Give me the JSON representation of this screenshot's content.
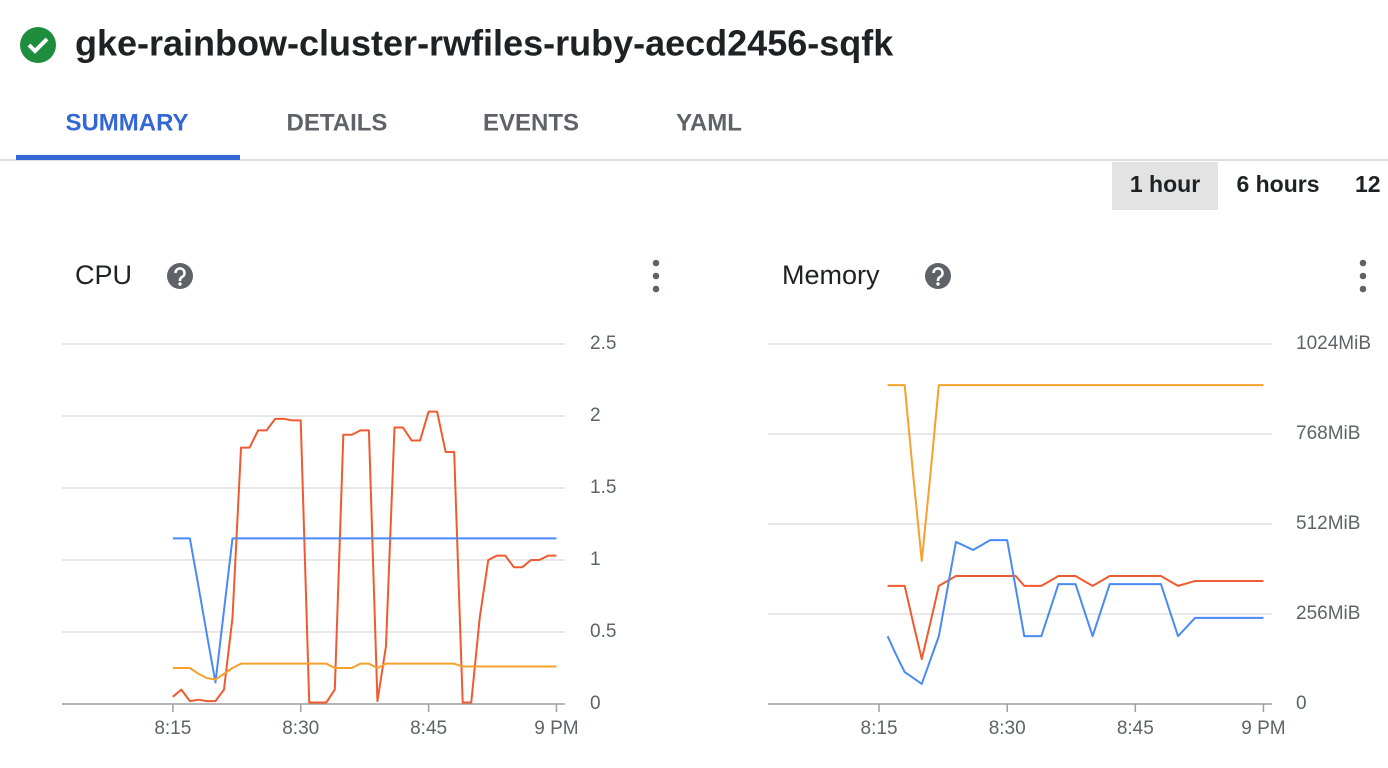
{
  "header": {
    "title": "gke-rainbow-cluster-rwfiles-ruby-aecd2456-sqfk"
  },
  "tabs": [
    "SUMMARY",
    "DETAILS",
    "EVENTS",
    "YAML"
  ],
  "time_ranges": [
    "1 hour",
    "6 hours",
    "12"
  ],
  "chart_data": [
    {
      "type": "line",
      "title": "CPU",
      "x": [
        "8:15",
        "8:16",
        "8:17",
        "8:18",
        "8:19",
        "8:20",
        "8:21",
        "8:22",
        "8:23",
        "8:24",
        "8:25",
        "8:26",
        "8:27",
        "8:28",
        "8:29",
        "8:30",
        "8:31",
        "8:32",
        "8:33",
        "8:34",
        "8:35",
        "8:36",
        "8:37",
        "8:38",
        "8:39",
        "8:40",
        "8:41",
        "8:42",
        "8:43",
        "8:44",
        "8:45",
        "8:46",
        "8:47",
        "8:48",
        "8:49",
        "8:50",
        "8:51",
        "8:52",
        "8:53",
        "8:54",
        "8:55",
        "8:56",
        "8:57",
        "8:58",
        "8:59",
        "9:00"
      ],
      "xlim": [
        "8:02",
        "9:01"
      ],
      "xticks": [
        "8:15",
        "8:30",
        "8:45",
        {
          "value": "9:00",
          "label": "9 PM"
        }
      ],
      "ylim": [
        0,
        2.5
      ],
      "yticks": [
        0,
        0.5,
        1.0,
        1.5,
        2.0,
        2.5
      ],
      "grid": true,
      "series": [
        {
          "color": "#ef5b30",
          "values": [
            0.05,
            0.1,
            0.02,
            0.03,
            0.02,
            0.02,
            0.1,
            0.6,
            1.78,
            1.78,
            1.9,
            1.9,
            1.98,
            1.98,
            1.97,
            1.97,
            0.01,
            0.01,
            0.01,
            0.1,
            1.87,
            1.87,
            1.9,
            1.9,
            0.02,
            0.4,
            1.92,
            1.92,
            1.83,
            1.83,
            2.03,
            2.03,
            1.75,
            1.75,
            0.01,
            0.01,
            0.6,
            1,
            1.03,
            1.03,
            0.95,
            0.95,
            1,
            1,
            1.03,
            1.03
          ]
        },
        {
          "color": "#4a8af4",
          "values": [
            1.15,
            1.15,
            1.15,
            0.82,
            0.48,
            0.15,
            0.65,
            1.15,
            1.15,
            1.15,
            1.15,
            1.15,
            1.15,
            1.15,
            1.15,
            1.15,
            1.15,
            1.15,
            1.15,
            1.15,
            1.15,
            1.15,
            1.15,
            1.15,
            1.15,
            1.15,
            1.15,
            1.15,
            1.15,
            1.15,
            1.15,
            1.15,
            1.15,
            1.15,
            1.15,
            1.15,
            1.15,
            1.15,
            1.15,
            1.15,
            1.15,
            1.15,
            1.15,
            1.15,
            1.15,
            1.15
          ]
        },
        {
          "color": "#f6a02e",
          "values": [
            0.25,
            0.25,
            0.25,
            0.21,
            0.18,
            0.17,
            0.21,
            0.25,
            0.28,
            0.28,
            0.28,
            0.28,
            0.28,
            0.28,
            0.28,
            0.28,
            0.28,
            0.28,
            0.28,
            0.25,
            0.25,
            0.25,
            0.28,
            0.28,
            0.25,
            0.28,
            0.28,
            0.28,
            0.28,
            0.28,
            0.28,
            0.28,
            0.28,
            0.28,
            0.26,
            0.26,
            0.26,
            0.26,
            0.26,
            0.26,
            0.26,
            0.26,
            0.26,
            0.26,
            0.26,
            0.26
          ]
        }
      ]
    },
    {
      "type": "line",
      "title": "Memory",
      "x": [
        "8:15",
        "8:16",
        "8:17",
        "8:18",
        "8:19",
        "8:20",
        "8:21",
        "8:22",
        "8:23",
        "8:24",
        "8:25",
        "8:26",
        "8:27",
        "8:28",
        "8:29",
        "8:30",
        "8:31",
        "8:32",
        "8:33",
        "8:34",
        "8:35",
        "8:36",
        "8:37",
        "8:38",
        "8:39",
        "8:40",
        "8:41",
        "8:42",
        "8:43",
        "8:44",
        "8:45",
        "8:46",
        "8:47",
        "8:48",
        "8:49",
        "8:50",
        "8:51",
        "8:52",
        "8:53",
        "8:54",
        "8:55",
        "8:56",
        "8:57",
        "8:58",
        "8:59",
        "9:00"
      ],
      "xlim": [
        "8:02",
        "9:01"
      ],
      "xticks": [
        "8:15",
        "8:30",
        "8:45",
        {
          "value": "9:00",
          "label": "9 PM"
        }
      ],
      "ylim": [
        0,
        1024
      ],
      "yticks": [
        0,
        {
          "value": 256,
          "label": "256MiB"
        },
        {
          "value": 512,
          "label": "512MiB"
        },
        {
          "value": 768,
          "label": "768MiB"
        },
        {
          "value": 1024,
          "label": "1024MiB"
        }
      ],
      "grid": true,
      "series": [
        {
          "color": "#f6a02e",
          "values": [
            null,
            907,
            907,
            907,
            650,
            407,
            650,
            907,
            907,
            907,
            907,
            907,
            907,
            907,
            907,
            907,
            907,
            907,
            907,
            907,
            907,
            907,
            907,
            907,
            907,
            907,
            907,
            907,
            907,
            907,
            907,
            907,
            907,
            907,
            907,
            907,
            907,
            907,
            907,
            907,
            907,
            907,
            907,
            907,
            907,
            907
          ]
        },
        {
          "color": "#ef5b30",
          "values": [
            null,
            336,
            336,
            336,
            230,
            128,
            230,
            336,
            350,
            364,
            364,
            364,
            364,
            364,
            364,
            364,
            364,
            336,
            336,
            336,
            350,
            364,
            364,
            364,
            350,
            336,
            350,
            364,
            364,
            364,
            364,
            364,
            364,
            364,
            350,
            336,
            343,
            350,
            350,
            350,
            350,
            350,
            350,
            350,
            350,
            350
          ]
        },
        {
          "color": "#4a8af4",
          "values": [
            null,
            193,
            140,
            91,
            74,
            57,
            125,
            193,
            327,
            461,
            450,
            438,
            452,
            466,
            466,
            466,
            330,
            193,
            193,
            193,
            267,
            341,
            341,
            341,
            267,
            193,
            267,
            341,
            341,
            341,
            341,
            341,
            341,
            341,
            267,
            193,
            219,
            245,
            245,
            245,
            245,
            245,
            245,
            245,
            245,
            245
          ]
        }
      ]
    }
  ]
}
